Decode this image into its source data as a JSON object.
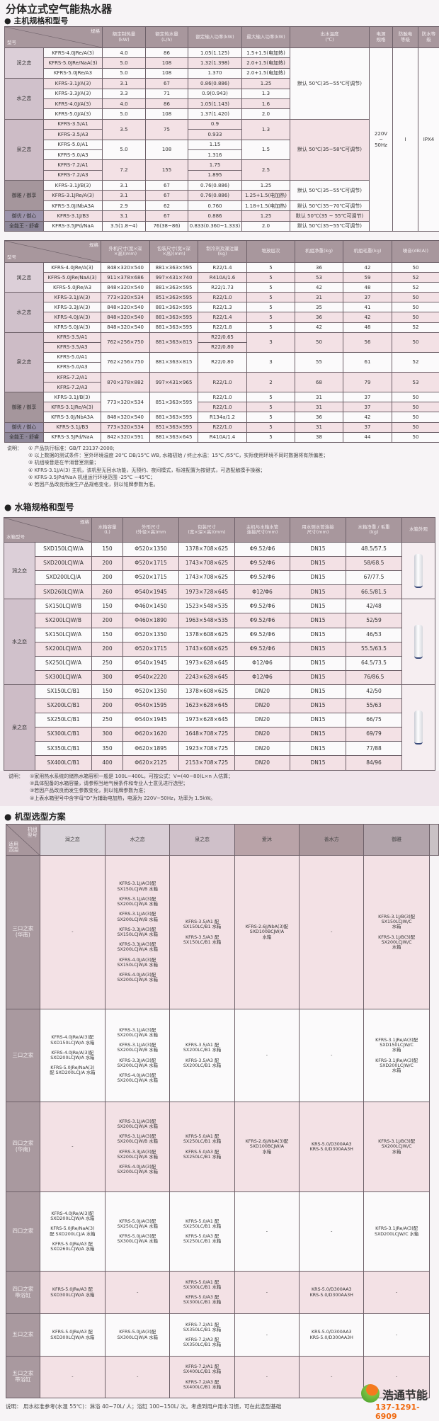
{
  "title": "分体立式空气能热水器",
  "section_host": "主机规格和型号",
  "host_table": {
    "corner_top": "规格",
    "corner_bottom": "型号",
    "headers": [
      "额定制热量\n(kW)",
      "额定热水量\n(L/h)",
      "额定输入功率(kW)",
      "最大输入功率(kW)",
      "出水温度\n(℃)",
      "电源\n规格",
      "防触电\n等级",
      "防水等\n级"
    ],
    "rows": [
      [
        {
          "v": "润之恋",
          "rs": 3
        },
        "KFRS-4.0JRe/A(3)",
        "4.0",
        "86",
        "1.05(1.125)",
        "1.5+1.5(电加热)",
        {
          "v": "默认 50℃(35~55℃可调节)",
          "rs": 7
        },
        {
          "v": "220V\n~\n50Hz",
          "rs": 18
        },
        {
          "v": "I",
          "rs": 18
        },
        {
          "v": "IPX4",
          "rs": 18
        }
      ],
      [
        "KFRS-5.0JRe/NaA(3)",
        "5.0",
        "108",
        "1.32(1.398)",
        "2.0+1.5(电加热)"
      ],
      [
        "KFRS-5.0JRe/A3",
        "5.0",
        "108",
        "1.370",
        "2.0+1.5(电加热)"
      ],
      [
        {
          "v": "水之恋",
          "rs": 4
        },
        "KFRS-3.1J/A(3)",
        "3.1",
        "67",
        "0.86(0.886)",
        "1.25"
      ],
      [
        "KFRS-3.3J/A(3)",
        "3.3",
        "71",
        "0.9(0.943)",
        "1.3"
      ],
      [
        "KFRS-4.0J/A(3)",
        "4.0",
        "86",
        "1.05(1.143)",
        "1.6"
      ],
      [
        "KFRS-5.0J/A(3)",
        "5.0",
        "108",
        "1.37(1.420)",
        "2.0"
      ],
      [
        {
          "v": "泉之恋",
          "rs": 6
        },
        "KFRS-3.5/A1",
        {
          "v": "3.5",
          "rs": 2
        },
        {
          "v": "75",
          "rs": 2
        },
        "0.9",
        {
          "v": "1.3",
          "rs": 2
        },
        {
          "v": "默认 50℃(35~58℃可调节)",
          "rs": 6
        }
      ],
      [
        "KFRS-3.5/A3",
        "0.933"
      ],
      [
        "KFRS-5.0/A1",
        {
          "v": "5.0",
          "rs": 2
        },
        {
          "v": "108",
          "rs": 2
        },
        "1.15",
        {
          "v": "1.5",
          "rs": 2
        }
      ],
      [
        "KFRS-5.0/A3",
        "1.316"
      ],
      [
        "KFRS-7.2/A1",
        {
          "v": "7.2",
          "rs": 2
        },
        {
          "v": "155",
          "rs": 2
        },
        "1.75",
        {
          "v": "2.5",
          "rs": 2
        }
      ],
      [
        "KFRS-7.2/A3",
        "1.895"
      ],
      [
        {
          "v": "御雅 / 御享",
          "rs": 3
        },
        "KFRS-3.1J/B(3)",
        "3.1",
        "67",
        "0.76(0.886)",
        "1.25",
        {
          "v": "默认 50℃(35~55℃可调节)",
          "rs": 2
        }
      ],
      [
        "KFRS-3.1JRe/A(3)",
        "3.1",
        "67",
        "0.76(0.886)",
        "1.25+1.5(电加热)"
      ],
      [
        "KFRS-3.0J/NbA3A",
        "2.9",
        "62",
        "0.760",
        "1.18+1.5(电加热)",
        "默认 50℃(35~70℃可调节)"
      ],
      [
        {
          "v": "御优 / 御心",
          "rs": 1
        },
        "KFRS-3.1J/B3",
        "3.1",
        "67",
        "0.886",
        "1.25",
        "默认 50℃(35 ~ 55℃可调节)"
      ],
      [
        {
          "v": "全能王 - 舒睿",
          "rs": 1
        },
        "KFRS-3.5JPd/NaA",
        "3.5(1.8~4)",
        "76(38~86)",
        "0.833(0.360~1.333)",
        "2.0",
        "默认 50℃(35~55℃可调节)"
      ]
    ]
  },
  "size_table": {
    "corner_top": "规格",
    "corner_bottom": "型号",
    "headers": [
      "外机尺寸(宽×深\n×高)(mm)",
      "包装尺寸(宽×深\n×高)(mm)",
      "制冷剂及灌注量\n(kg)",
      "堆放层次",
      "机组净重(kg)",
      "机组毛重(kg)",
      "噪音(dB(A))"
    ],
    "rows": [
      [
        {
          "v": "润之恋",
          "rs": 3
        },
        "KFRS-4.0JRe/A(3)",
        "848×320×540",
        "881×363×595",
        "R22/1.4",
        "5",
        "36",
        "42",
        "50"
      ],
      [
        "KFRS-5.0JRe/NaA(3)",
        "911×378×686",
        "997×431×740",
        "R410A/1.6",
        "5",
        "53",
        "59",
        "52"
      ],
      [
        "KFRS-5.0JRe/A3",
        "848×320×540",
        "881×363×595",
        "R22/1.73",
        "5",
        "42",
        "48",
        "52"
      ],
      [
        {
          "v": "水之恋",
          "rs": 4
        },
        "KFRS-3.1J/A(3)",
        "773×320×534",
        "851×363×595",
        "R22/1.0",
        "5",
        "31",
        "37",
        "50"
      ],
      [
        "KFRS-3.3J/A(3)",
        "848×320×540",
        "881×363×595",
        "R22/1.3",
        "5",
        "35",
        "41",
        "50"
      ],
      [
        "KFRS-4.0J/A(3)",
        "848×320×540",
        "881×363×595",
        "R22/1.4",
        "5",
        "36",
        "42",
        "50"
      ],
      [
        "KFRS-5.0J/A(3)",
        "848×320×540",
        "881×363×595",
        "R22/1.8",
        "5",
        "42",
        "48",
        "52"
      ],
      [
        {
          "v": "泉之恋",
          "rs": 6
        },
        "KFRS-3.5/A1",
        {
          "v": "762×256×750",
          "rs": 2
        },
        {
          "v": "881×363×815",
          "rs": 2
        },
        "R22/0.65",
        {
          "v": "3",
          "rs": 2
        },
        {
          "v": "50",
          "rs": 2
        },
        {
          "v": "56",
          "rs": 2
        },
        {
          "v": "50",
          "rs": 2
        }
      ],
      [
        "KFRS-3.5/A3",
        "R22/0.80"
      ],
      [
        "KFRS-5.0/A1",
        {
          "v": "762×256×750",
          "rs": 2
        },
        {
          "v": "881×363×815",
          "rs": 2
        },
        {
          "v": "R22/0.80",
          "rs": 2
        },
        {
          "v": "3",
          "rs": 2
        },
        {
          "v": "55",
          "rs": 2
        },
        {
          "v": "61",
          "rs": 2
        },
        {
          "v": "52",
          "rs": 2
        }
      ],
      [
        "KFRS-5.0/A3"
      ],
      [
        "KFRS-7.2/A1",
        {
          "v": "870×378×882",
          "rs": 2
        },
        {
          "v": "997×431×965",
          "rs": 2
        },
        {
          "v": "R22/1.0",
          "rs": 2
        },
        {
          "v": "2",
          "rs": 2
        },
        {
          "v": "68",
          "rs": 2
        },
        {
          "v": "79",
          "rs": 2
        },
        {
          "v": "53",
          "rs": 2
        }
      ],
      [
        "KFRS-7.2/A3"
      ],
      [
        {
          "v": "御雅 / 御享",
          "rs": 3
        },
        "KFRS-3.1J/B(3)",
        {
          "v": "773×320×534",
          "rs": 2
        },
        {
          "v": "851×363×595",
          "rs": 2
        },
        "R22/1.0",
        "5",
        "31",
        "37",
        "50"
      ],
      [
        "KFRS-3.1JRe/A(3)",
        "R22/1.0",
        "5",
        "31",
        "37",
        "50"
      ],
      [
        "KFRS-3.0J/NbA3A",
        "848×320×540",
        "881×363×595",
        "R134a/1.2",
        "5",
        "36",
        "42",
        "50"
      ],
      [
        {
          "v": "御优 / 御心",
          "rs": 1
        },
        "KFRS-3.1J/B3",
        "773×320×534",
        "851×363×595",
        "R22/1.0",
        "5",
        "31",
        "37",
        "50"
      ],
      [
        {
          "v": "全能王 - 舒睿",
          "rs": 1
        },
        "KFRS-3.5JPd/NaA",
        "842×320×591",
        "881×363×645",
        "R410A/1.4",
        "5",
        "38",
        "44",
        "50"
      ]
    ]
  },
  "host_notes": {
    "label": "说明：",
    "lines": [
      "① 产品执行标准：GB/T 23137-2008;",
      "② 以上数据的测试条件：室外环境温度 20℃ DB/15℃ WB, 水箱初始 / 终止水温：15℃ /55℃，实际使用环境不同时数据将有所偏差；",
      "③ 机组噪音是在半消音室测量；",
      "④ KFRS-3.1J/A(3) 主机，该机型无回水功能，无预约、夜间模式，标准配置为按键式，可选配触摸手操器；",
      "⑤ KFRS-3.5JPd/NaA 机组运行环境范围 -25℃ ~45℃；",
      "⑥ 若因产品改良而发生产品规格变化，则以铭牌参数为准。"
    ]
  },
  "section_tank": "水箱规格和型号",
  "tank_table": {
    "corner_top": "规格",
    "corner_bottom": "水箱型号",
    "headers": [
      "水箱容量\n(L)",
      "外形尺寸\n(外径×高)mm",
      "包装尺寸\n(宽×深×高)(mm)",
      "主机与水箱水管\n连接尺寸(mm)",
      "用水侧水管连接\n尺寸(mm)",
      "水箱净重 / 毛重\n(kg)",
      "水箱外观"
    ],
    "groups": [
      {
        "name": "润之恋",
        "rows": [
          [
            "SXD150LCJW/A",
            "150",
            "Φ520×1350",
            "1378×708×625",
            "Φ9.52/Φ6",
            "DN15",
            "48.5/57.5"
          ],
          [
            "SXD200LCJW/A",
            "200",
            "Φ520×1715",
            "1743×708×625",
            "Φ9.52/Φ6",
            "DN15",
            "58/68.5"
          ],
          [
            "SXD200LCJ/A",
            "200",
            "Φ520×1715",
            "1743×708×625",
            "Φ9.52/Φ6",
            "DN15",
            "67/77.5"
          ],
          [
            "SXD260LCJW/A",
            "260",
            "Φ540×1945",
            "1973×728×645",
            "Φ12/Φ6",
            "DN15",
            "66.5/81.5"
          ]
        ]
      },
      {
        "name": "水之恋",
        "rows": [
          [
            "SX150LCJW/B",
            "150",
            "Φ460×1450",
            "1523×548×535",
            "Φ9.52/Φ6",
            "DN15",
            "42/48"
          ],
          [
            "SX200LCJW/B",
            "200",
            "Φ460×1890",
            "1963×548×535",
            "Φ9.52/Φ6",
            "DN15",
            "52/59"
          ],
          [
            "SX150LCJW/A",
            "150",
            "Φ520×1350",
            "1378×608×625",
            "Φ9.52/Φ6",
            "DN15",
            "46/53"
          ],
          [
            "SX200LCJW/A",
            "200",
            "Φ520×1715",
            "1743×608×625",
            "Φ9.52/Φ6",
            "DN15",
            "55.5/63.5"
          ],
          [
            "SX250LCJW/A",
            "250",
            "Φ540×1945",
            "1973×628×645",
            "Φ12/Φ6",
            "DN15",
            "64.5/73.5"
          ],
          [
            "SX300LCJW/A",
            "300",
            "Φ540×2220",
            "2243×628×645",
            "Φ12/Φ6",
            "DN15",
            "76/86.5"
          ]
        ]
      },
      {
        "name": "泉之恋",
        "rows": [
          [
            "SX150LC/B1",
            "150",
            "Φ520×1350",
            "1378×608×625",
            "DN20",
            "DN15",
            "42/50"
          ],
          [
            "SX200LC/B1",
            "200",
            "Φ540×1595",
            "1623×628×645",
            "DN20",
            "DN15",
            "55/63"
          ],
          [
            "SX250LC/B1",
            "250",
            "Φ540×1945",
            "1973×628×645",
            "DN20",
            "DN15",
            "66/75"
          ],
          [
            "SX300LC/B1",
            "300",
            "Φ620×1620",
            "1648×708×725",
            "DN20",
            "DN15",
            "69/79"
          ],
          [
            "SX350LC/B1",
            "350",
            "Φ620×1895",
            "1923×708×725",
            "DN20",
            "DN15",
            "77/88"
          ],
          [
            "SX400LC/B1",
            "400",
            "Φ620×2125",
            "2153×708×725",
            "DN20",
            "DN15",
            "84/96"
          ]
        ]
      }
    ]
  },
  "tank_notes": {
    "label": "说明：",
    "lines": [
      "①家用热水系统的储热水箱容积一般是 100L~400L，可按公式：V=(40~80)L×n 人估算；",
      "②具体配备的水箱容量，请参照当地气候条件和专业人士意见进行选型；",
      "③若因产品改良而发生参数变化，则以铭牌参数为准；",
      "④上表水箱型号中含字母“D”为辅助电加热，电源为 220V~50Hz，功率为 1.5kW。"
    ]
  },
  "section_select": "机型选型方案",
  "select_table": {
    "corner_top": "机组\n型号",
    "corner_bottom": "适用\n范围",
    "headers": [
      "润之恋",
      "水之恋",
      "泉之恋",
      "爱沐",
      "善水方",
      "御雅"
    ],
    "rows": [
      {
        "label": "三口之家\n(华南)",
        "cells": [
          "-",
          [
            "KFRS-3.1J/A(3)配\nSX150LCJW/B 水箱",
            "KFRS-3.1J/A(3)配\nSX200LCJW/A 水箱",
            "KFRS-3.1J/A(3)配\nSX200LCJW/B 水箱",
            "KFRS-3.3J/A(3)配\nSX150LCJW/A 水箱",
            "KFRS-3.3J/A(3)配\nSX200LCJW/A 水箱",
            "KFRS-4.0J/A(3)配\nSX150LCJW/A 水箱",
            "KFRS-4.0J/A(3)配\nSX200LCJW/A 水箱"
          ],
          [
            "KFRS-3.5/A1 配\nSX150LC/B1 水箱",
            "KFRS-3.5/A3 配\nSX150LC/B1 水箱"
          ],
          [
            "KFRS-2.6J/NbA(3)配\nSXD100BCJW/A\n水箱"
          ],
          "-",
          [
            "KFRS-3.1J/B(3)配\nSX150LCJW/C\n水箱",
            "KFRS-3.1J/B(3)配\nSX200LCJW/C\n水箱"
          ]
        ]
      },
      {
        "label": "三口之家",
        "cells": [
          [
            "KFRS-4.0JRe/A(3)配\nSXD150LCJW/A 水箱",
            "KFRS-4.0JRe/A(3)配\nSXD200LCJW/A 水箱",
            "KFRS-5.0JRe/NaA(3)\n配 SXD200LCJ/A 水箱"
          ],
          [
            "KFRS-3.1J/A(3)配\nSX200LCJW/A 水箱",
            "KFRS-3.1J/A(3)配\nSX200LCJW/B 水箱",
            "KFRS-3.3J/A(3)配\nSX200LCJW/A 水箱",
            "KFRS-4.0J/A(3)配\nSX200LCJW/A 水箱"
          ],
          [
            "KFRS-3.5/A1 配\nSX200LC/B1 水箱",
            "KFRS-3.5/A3 配\nSX200LC/B1 水箱"
          ],
          "-",
          "-",
          [
            "KFRS-3.1JRe/A(3)配\nSXD150LCJW/C\n水箱",
            "KFRS-3.1JRe/A(3)配\nSXD200LCJW/C\n水箱"
          ]
        ]
      },
      {
        "label": "四口之家\n(华南)",
        "cells": [
          "-",
          [
            "KFRS-3.1J/A(3)配\nSX200LCJW/A 水箱",
            "KFRS-3.1J/A(3)配\nSX200LCJW/B 水箱",
            "KFRS-3.3J/A(3)配\nSX200LCJW/A 水箱",
            "KFRS-4.0J/A(3)配\nSX200LCJW/A 水箱"
          ],
          [
            "KFRS-5.0/A1 配\nSX250LC/B1 水箱",
            "KFRS-5.0/A3 配\nSX250LC/B1 水箱"
          ],
          [
            "KFRS-2.6J/NbA(3)配\nSXD100BCJW/A\n水箱"
          ],
          [
            "KRS-5.0/D300AA3\nKRS-5.0/D300AA3H"
          ],
          [
            "KFRS-3.1J/B(3)配\nSX200LCJW/C\n水箱"
          ]
        ]
      },
      {
        "label": "四口之家",
        "cells": [
          [
            "KFRS-4.0JRe/A(3)配\nSXD200LCJW/A 水箱",
            "KFRS-5.0JRe/NaA(3)\n配 SXD200LCJ/A 水箱",
            "KFRS-5.0JRe/A3 配\nSXD260LCJW/A 水箱"
          ],
          [
            "KFRS-5.0J/A(3)配\nSX250LCJW/A 水箱",
            "KFRS-5.0J/A(3)配\nSX300LCJW/A 水箱"
          ],
          [
            "KFRS-5.0/A1 配\nSX250LC/B1 水箱",
            "KFRS-5.0/A3 配\nSX250LC/B1 水箱"
          ],
          "-",
          "-",
          [
            "KFRS-3.1JRe/A(3)配\nSXD200LCJW/C 水箱"
          ]
        ]
      },
      {
        "label": "四口之家\n带浴缸",
        "cells": [
          [
            "KFRS-5.0JRe/A3 配\nSXD300LCJW/A 水箱"
          ],
          "-",
          [
            "KFRS-5.0/A1 配\nSX300LC/B1 水箱",
            "KFRS-5.0/A3 配\nSX300LC/B1 水箱"
          ],
          "-",
          [
            "KRS-5.0/D300AA3\nKRS-5.0/D300AA3H"
          ],
          "-"
        ]
      },
      {
        "label": "五口之家",
        "cells": [
          [
            "KFRS-5.0JRe/A3 配\nSXD300LCJW/A 水箱"
          ],
          [
            "KFRS-5.0J/A(3)配\nSX300LCJW/A 水箱"
          ],
          [
            "KFRS-7.2/A1 配\nSX350LC/B1 水箱",
            "KFRS-7.2/A3 配\nSX350LC/B1 水箱"
          ],
          "-",
          [
            "KRS-5.0/D300AA3\nKRS-5.0/D300AA3H"
          ],
          "-"
        ]
      },
      {
        "label": "五口之家\n带浴缸",
        "cells": [
          "-",
          "-",
          [
            "KFRS-7.2/A1 配\nSX400LC/B1 水箱",
            "KFRS-7.2/A3 配\nSX400LC/B1 水箱"
          ],
          "-",
          "-",
          "-"
        ]
      }
    ]
  },
  "select_note": "说明：  用水标准参考(水温 55℃)：淋浴 40~70L/ 人；浴缸 100~150L/ 次。考虑到用户用水习惯，可在此选型基础",
  "logo": {
    "name": "浩通节能",
    "phone": "137-1291-6909"
  },
  "colors": {
    "header": "#a8979d",
    "pink_row": "#f3e1e5",
    "logo_orange": "#f06a10",
    "logo_green": "#7cc242"
  }
}
